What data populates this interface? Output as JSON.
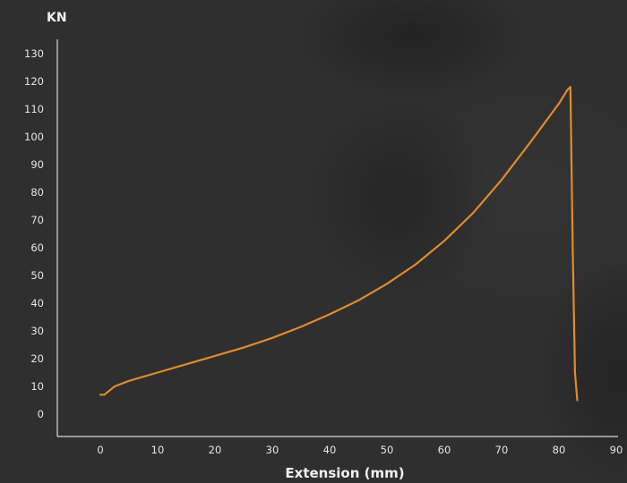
{
  "chart_data": {
    "type": "line",
    "title": "",
    "ylabel": "KN",
    "xlabel": "Extension (mm)",
    "xlim": [
      -7,
      90
    ],
    "ylim": [
      -12,
      135
    ],
    "x_ticks": [
      0,
      10,
      20,
      30,
      40,
      50,
      60,
      70,
      80,
      90
    ],
    "y_ticks": [
      0,
      10,
      20,
      30,
      40,
      50,
      60,
      70,
      80,
      90,
      100,
      110,
      120,
      130
    ],
    "grid": false,
    "line_color": "#e08a2e",
    "series": [
      {
        "x": [
          0,
          0.7,
          2.5,
          5,
          10,
          15,
          20,
          25,
          30,
          35,
          40,
          45,
          50,
          55,
          60,
          65,
          70,
          75,
          80,
          81.5,
          82,
          82.4,
          82.8,
          83.2
        ],
        "values": [
          7,
          7,
          10,
          12,
          15,
          18,
          21,
          24,
          27.5,
          31.5,
          36,
          41,
          47,
          54,
          62.5,
          72.5,
          84.5,
          98,
          112,
          117,
          118,
          60,
          15,
          5
        ]
      }
    ]
  }
}
